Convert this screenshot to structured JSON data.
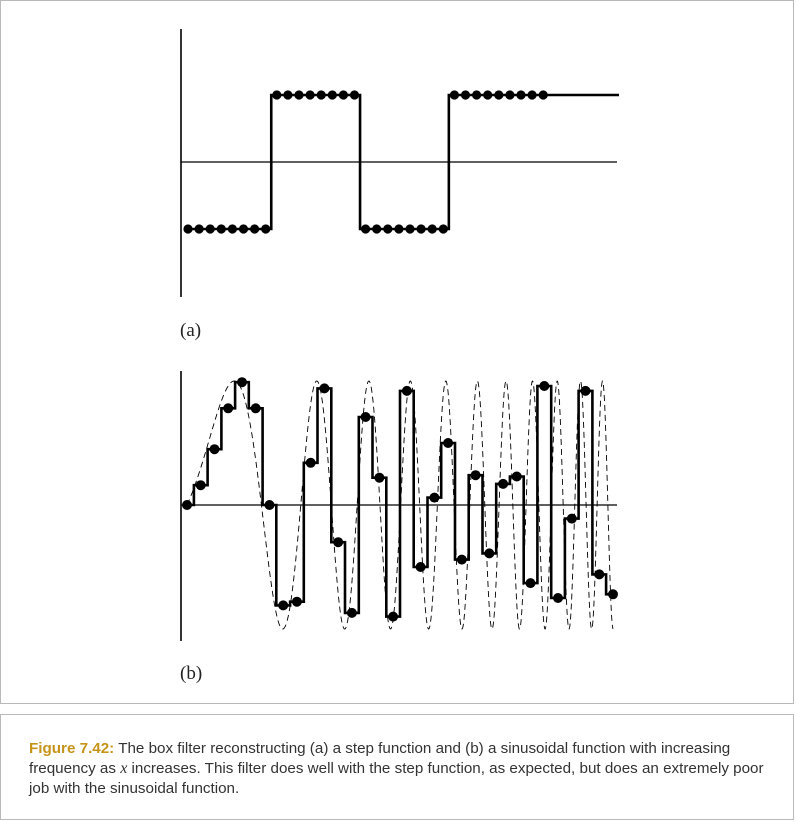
{
  "figure": {
    "panel_a_label": "(a)",
    "panel_b_label": "(b)"
  },
  "caption": {
    "label": "Figure 7.42:",
    "text_1": " The box filter reconstructing (a) a step function and (b) a sinusoidal function with increasing frequency as ",
    "var": "x",
    "text_2": " increases. This filter does well with the step function, as expected, but does an extremely poor job with the sinusoidal function."
  },
  "chart_data": [
    {
      "type": "line",
      "title": "",
      "xlabel": "",
      "ylabel": "",
      "description_series": [
        {
          "style": "box-filter step reconstruction with sample dots",
          "step_levels": [
            -1,
            1,
            -1,
            1
          ],
          "samples_per_level": 8,
          "samples": [
            -1,
            -1,
            -1,
            -1,
            -1,
            -1,
            -1,
            -1,
            1,
            1,
            1,
            1,
            1,
            1,
            1,
            1,
            -1,
            -1,
            -1,
            -1,
            -1,
            -1,
            -1,
            -1,
            1,
            1,
            1,
            1,
            1,
            1,
            1,
            1,
            1
          ]
        }
      ]
    },
    {
      "type": "line",
      "title": "",
      "xlabel": "",
      "ylabel": "",
      "description_series": [
        {
          "style": "dashed sinusoid with increasing frequency",
          "x_range": [
            0,
            1
          ],
          "phase_coefficients": [
            7.5,
            60
          ]
        },
        {
          "style": "box-filter reconstruction (solid, sample dots)",
          "samples": [
            0.0,
            0.16,
            0.45,
            0.78,
            0.99,
            0.78,
            0.0,
            -0.81,
            -0.78,
            0.34,
            0.94,
            -0.3,
            -0.87,
            0.71,
            0.22,
            -0.9,
            0.92,
            -0.5,
            0.06,
            0.5,
            -0.44,
            0.24,
            -0.39,
            0.17,
            0.23,
            -0.63,
            0.96,
            -0.75,
            -0.11,
            0.92,
            -0.56,
            -0.72
          ]
        }
      ]
    }
  ]
}
